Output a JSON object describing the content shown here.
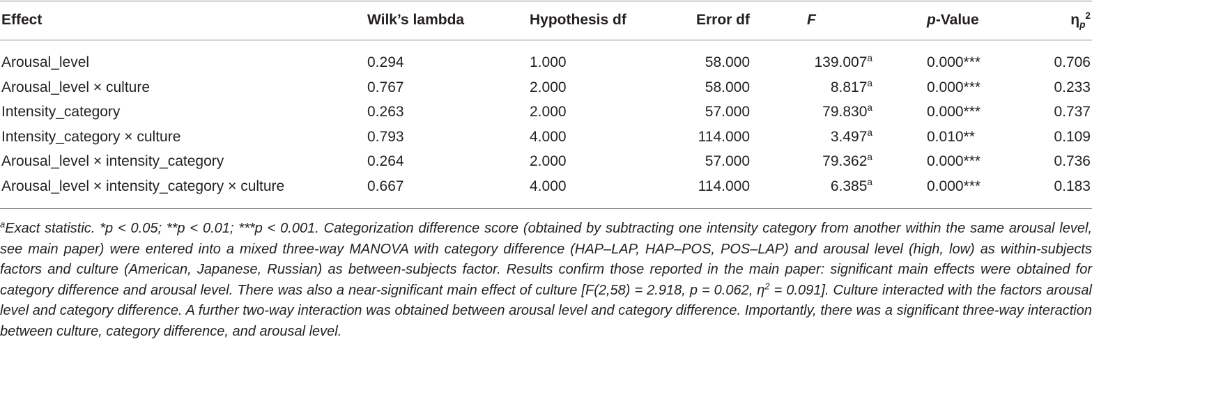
{
  "table": {
    "header": [
      {
        "parts": [
          {
            "text": "Effect"
          }
        ]
      },
      {
        "parts": [
          {
            "text": "Wilk’s lambda"
          }
        ]
      },
      {
        "parts": [
          {
            "text": "Hypothesis df"
          }
        ]
      },
      {
        "parts": [
          {
            "text": "Error df"
          }
        ]
      },
      {
        "parts": [
          {
            "text": "F",
            "style": "italic"
          }
        ]
      },
      {
        "parts": [
          {
            "text": "p",
            "style": "italic"
          },
          {
            "text": "-Value"
          }
        ]
      },
      {
        "parts": [
          {
            "text": "η"
          },
          {
            "text": "p",
            "style": "sub"
          },
          {
            "text": "2",
            "style": "sup"
          }
        ]
      }
    ],
    "rows": [
      {
        "effect": "Arousal_level",
        "lambda": "0.294",
        "hyp_df": "1.000",
        "err_df": "58.000",
        "f": "139.007",
        "f_note": "a",
        "p": "0.000***",
        "eta": "0.706"
      },
      {
        "effect": "Arousal_level × culture",
        "lambda": "0.767",
        "hyp_df": "2.000",
        "err_df": "58.000",
        "f": "8.817",
        "f_note": "a",
        "p": "0.000***",
        "eta": "0.233"
      },
      {
        "effect": "Intensity_category",
        "lambda": "0.263",
        "hyp_df": "2.000",
        "err_df": "57.000",
        "f": "79.830",
        "f_note": "a",
        "p": "0.000***",
        "eta": "0.737"
      },
      {
        "effect": "Intensity_category × culture",
        "lambda": "0.793",
        "hyp_df": "4.000",
        "err_df": "114.000",
        "f": "3.497",
        "f_note": "a",
        "p": "0.010**",
        "eta": "0.109"
      },
      {
        "effect": "Arousal_level × intensity_category",
        "lambda": "0.264",
        "hyp_df": "2.000",
        "err_df": "57.000",
        "f": "79.362",
        "f_note": "a",
        "p": "0.000***",
        "eta": "0.736"
      },
      {
        "effect": "Arousal_level × intensity_category × culture",
        "lambda": "0.667",
        "hyp_df": "4.000",
        "err_df": "114.000",
        "f": "6.385",
        "f_note": "a",
        "p": "0.000***",
        "eta": "0.183"
      }
    ]
  },
  "footnote": {
    "marker": "a",
    "text_1": "Exact statistic. *p < 0.05; **p < 0.01; ***p < 0.001. Categorization difference score (obtained by subtracting one intensity category from another within the same arousal level, see main paper) were entered into a mixed three-way MANOVA with category difference (HAP–LAP, HAP–POS, POS–LAP) and arousal level (high, low) as within-subjects factors and culture (American, Japanese, Russian) as between-subjects factor. Results confirm those reported in the main paper: significant main effects were obtained for category difference and arousal level. There was also a near-significant main effect of culture [F(2,58) = 2.918, p = 0.062, η",
    "sup": "2",
    "text_2": " = 0.091]. Culture interacted with the factors arousal level and category difference. A further two-way interaction was obtained between arousal level and category difference. Importantly, there was a significant three-way interaction between culture, category difference, and arousal level."
  }
}
